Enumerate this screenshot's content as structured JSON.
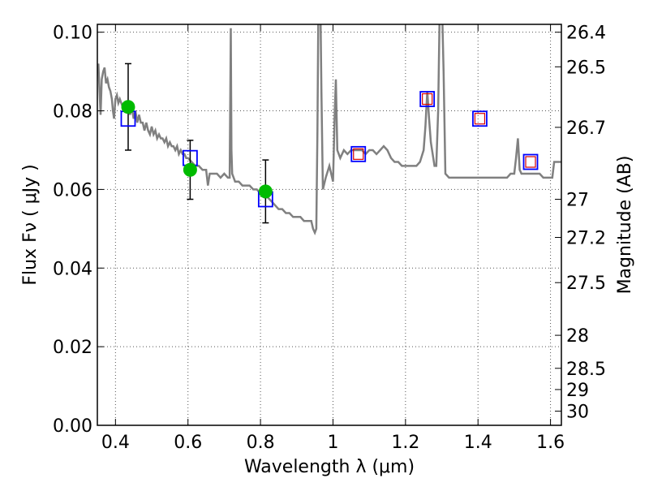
{
  "chart_data": {
    "type": "line",
    "xlabel": "Wavelength  λ (μm)",
    "ylabel": "Flux  Fν  ( μJy )",
    "y2label": "Magnitude (AB)",
    "xlim": [
      0.35,
      1.63
    ],
    "ylim": [
      0.0,
      0.102
    ],
    "grid": true,
    "x_ticks": [
      {
        "value": 0.4,
        "label": "0.4"
      },
      {
        "value": 0.6,
        "label": "0.6"
      },
      {
        "value": 0.8,
        "label": "0.8"
      },
      {
        "value": 1.0,
        "label": "1"
      },
      {
        "value": 1.2,
        "label": "1.2"
      },
      {
        "value": 1.4,
        "label": "1.4"
      },
      {
        "value": 1.6,
        "label": "1.6"
      }
    ],
    "y_ticks": [
      {
        "value": 0.0,
        "label": "0.00"
      },
      {
        "value": 0.02,
        "label": "0.02"
      },
      {
        "value": 0.04,
        "label": "0.04"
      },
      {
        "value": 0.06,
        "label": "0.06"
      },
      {
        "value": 0.08,
        "label": "0.08"
      },
      {
        "value": 0.1,
        "label": "0.10"
      }
    ],
    "y2_ticks": [
      {
        "flux": 0.1,
        "label": "26.4"
      },
      {
        "flux": 0.0912,
        "label": "26.5"
      },
      {
        "flux": 0.0758,
        "label": "26.7"
      },
      {
        "flux": 0.0575,
        "label": "27"
      },
      {
        "flux": 0.0478,
        "label": "27.2"
      },
      {
        "flux": 0.0363,
        "label": "27.5"
      },
      {
        "flux": 0.0229,
        "label": "28"
      },
      {
        "flux": 0.0145,
        "label": "28.5"
      },
      {
        "flux": 0.0091,
        "label": "29"
      },
      {
        "flux": 0.0036,
        "label": "30"
      }
    ],
    "colors": {
      "spectrum": "#808080",
      "observed": "#00bb00",
      "model_box": "#0000ff",
      "model_inner": "#d60000",
      "errorbar": "#000000",
      "grid": "#555555"
    },
    "series": [
      {
        "kind": "spectrum",
        "points": [
          [
            0.35,
            0.09
          ],
          [
            0.353,
            0.092
          ],
          [
            0.356,
            0.085
          ],
          [
            0.359,
            0.079
          ],
          [
            0.362,
            0.088
          ],
          [
            0.366,
            0.09
          ],
          [
            0.37,
            0.091
          ],
          [
            0.374,
            0.087
          ],
          [
            0.378,
            0.088
          ],
          [
            0.382,
            0.086
          ],
          [
            0.386,
            0.085
          ],
          [
            0.39,
            0.083
          ],
          [
            0.393,
            0.08
          ],
          [
            0.396,
            0.078
          ],
          [
            0.4,
            0.083
          ],
          [
            0.404,
            0.084
          ],
          [
            0.408,
            0.082
          ],
          [
            0.412,
            0.083
          ],
          [
            0.416,
            0.082
          ],
          [
            0.42,
            0.081
          ],
          [
            0.425,
            0.08
          ],
          [
            0.43,
            0.081
          ],
          [
            0.435,
            0.081
          ],
          [
            0.44,
            0.079
          ],
          [
            0.445,
            0.081
          ],
          [
            0.45,
            0.078
          ],
          [
            0.455,
            0.08
          ],
          [
            0.46,
            0.077
          ],
          [
            0.465,
            0.079
          ],
          [
            0.47,
            0.077
          ],
          [
            0.475,
            0.077
          ],
          [
            0.48,
            0.075
          ],
          [
            0.485,
            0.077
          ],
          [
            0.49,
            0.075
          ],
          [
            0.495,
            0.074
          ],
          [
            0.5,
            0.076
          ],
          [
            0.505,
            0.074
          ],
          [
            0.51,
            0.075
          ],
          [
            0.515,
            0.073
          ],
          [
            0.52,
            0.074
          ],
          [
            0.525,
            0.073
          ],
          [
            0.53,
            0.073
          ],
          [
            0.535,
            0.072
          ],
          [
            0.54,
            0.073
          ],
          [
            0.545,
            0.071
          ],
          [
            0.55,
            0.072
          ],
          [
            0.555,
            0.071
          ],
          [
            0.56,
            0.071
          ],
          [
            0.565,
            0.07
          ],
          [
            0.57,
            0.071
          ],
          [
            0.575,
            0.069
          ],
          [
            0.58,
            0.07
          ],
          [
            0.585,
            0.069
          ],
          [
            0.59,
            0.069
          ],
          [
            0.595,
            0.068
          ],
          [
            0.6,
            0.068
          ],
          [
            0.61,
            0.067
          ],
          [
            0.62,
            0.066
          ],
          [
            0.63,
            0.066
          ],
          [
            0.64,
            0.065
          ],
          [
            0.65,
            0.065
          ],
          [
            0.655,
            0.061
          ],
          [
            0.66,
            0.064
          ],
          [
            0.67,
            0.064
          ],
          [
            0.68,
            0.064
          ],
          [
            0.69,
            0.063
          ],
          [
            0.7,
            0.064
          ],
          [
            0.71,
            0.063
          ],
          [
            0.715,
            0.063
          ],
          [
            0.718,
            0.101
          ],
          [
            0.72,
            0.07
          ],
          [
            0.722,
            0.064
          ],
          [
            0.73,
            0.062
          ],
          [
            0.74,
            0.062
          ],
          [
            0.75,
            0.061
          ],
          [
            0.76,
            0.061
          ],
          [
            0.77,
            0.061
          ],
          [
            0.78,
            0.06
          ],
          [
            0.79,
            0.06
          ],
          [
            0.8,
            0.059
          ],
          [
            0.81,
            0.058
          ],
          [
            0.82,
            0.058
          ],
          [
            0.83,
            0.057
          ],
          [
            0.84,
            0.056
          ],
          [
            0.85,
            0.055
          ],
          [
            0.86,
            0.055
          ],
          [
            0.87,
            0.054
          ],
          [
            0.88,
            0.054
          ],
          [
            0.89,
            0.053
          ],
          [
            0.9,
            0.053
          ],
          [
            0.91,
            0.053
          ],
          [
            0.92,
            0.052
          ],
          [
            0.93,
            0.052
          ],
          [
            0.94,
            0.052
          ],
          [
            0.945,
            0.05
          ],
          [
            0.95,
            0.049
          ],
          [
            0.954,
            0.05
          ],
          [
            0.957,
            0.075
          ],
          [
            0.96,
            0.11
          ],
          [
            0.965,
            0.11
          ],
          [
            0.968,
            0.085
          ],
          [
            0.972,
            0.06
          ],
          [
            0.98,
            0.063
          ],
          [
            0.99,
            0.066
          ],
          [
            1.0,
            0.062
          ],
          [
            1.005,
            0.08
          ],
          [
            1.008,
            0.088
          ],
          [
            1.012,
            0.07
          ],
          [
            1.02,
            0.068
          ],
          [
            1.03,
            0.07
          ],
          [
            1.04,
            0.069
          ],
          [
            1.05,
            0.07
          ],
          [
            1.06,
            0.07
          ],
          [
            1.07,
            0.07
          ],
          [
            1.08,
            0.07
          ],
          [
            1.09,
            0.069
          ],
          [
            1.1,
            0.07
          ],
          [
            1.11,
            0.07
          ],
          [
            1.12,
            0.069
          ],
          [
            1.13,
            0.07
          ],
          [
            1.14,
            0.071
          ],
          [
            1.15,
            0.07
          ],
          [
            1.16,
            0.068
          ],
          [
            1.17,
            0.067
          ],
          [
            1.18,
            0.067
          ],
          [
            1.19,
            0.066
          ],
          [
            1.2,
            0.066
          ],
          [
            1.21,
            0.066
          ],
          [
            1.22,
            0.066
          ],
          [
            1.23,
            0.066
          ],
          [
            1.24,
            0.067
          ],
          [
            1.25,
            0.07
          ],
          [
            1.255,
            0.076
          ],
          [
            1.26,
            0.085
          ],
          [
            1.265,
            0.078
          ],
          [
            1.27,
            0.072
          ],
          [
            1.28,
            0.066
          ],
          [
            1.285,
            0.066
          ],
          [
            1.29,
            0.08
          ],
          [
            1.295,
            0.11
          ],
          [
            1.3,
            0.11
          ],
          [
            1.305,
            0.09
          ],
          [
            1.31,
            0.064
          ],
          [
            1.32,
            0.063
          ],
          [
            1.33,
            0.063
          ],
          [
            1.34,
            0.063
          ],
          [
            1.35,
            0.063
          ],
          [
            1.36,
            0.063
          ],
          [
            1.37,
            0.063
          ],
          [
            1.38,
            0.063
          ],
          [
            1.39,
            0.063
          ],
          [
            1.4,
            0.063
          ],
          [
            1.41,
            0.063
          ],
          [
            1.42,
            0.063
          ],
          [
            1.43,
            0.063
          ],
          [
            1.44,
            0.063
          ],
          [
            1.45,
            0.063
          ],
          [
            1.46,
            0.063
          ],
          [
            1.47,
            0.063
          ],
          [
            1.48,
            0.063
          ],
          [
            1.49,
            0.064
          ],
          [
            1.5,
            0.064
          ],
          [
            1.505,
            0.068
          ],
          [
            1.51,
            0.073
          ],
          [
            1.515,
            0.065
          ],
          [
            1.52,
            0.064
          ],
          [
            1.53,
            0.064
          ],
          [
            1.54,
            0.064
          ],
          [
            1.55,
            0.064
          ],
          [
            1.56,
            0.064
          ],
          [
            1.57,
            0.064
          ],
          [
            1.58,
            0.063
          ],
          [
            1.59,
            0.063
          ],
          [
            1.6,
            0.063
          ],
          [
            1.605,
            0.063
          ],
          [
            1.61,
            0.067
          ],
          [
            1.62,
            0.067
          ],
          [
            1.63,
            0.067
          ]
        ]
      },
      {
        "kind": "observed",
        "points": [
          {
            "x": 0.435,
            "y": 0.081,
            "yerr": 0.011
          },
          {
            "x": 0.606,
            "y": 0.065,
            "yerr": 0.0075
          },
          {
            "x": 0.814,
            "y": 0.0595,
            "yerr": 0.008
          }
        ]
      },
      {
        "kind": "model",
        "points": [
          {
            "x": 0.435,
            "y": 0.078,
            "inner": false
          },
          {
            "x": 0.606,
            "y": 0.068,
            "inner": false
          },
          {
            "x": 0.814,
            "y": 0.0575,
            "inner": false
          },
          {
            "x": 1.07,
            "y": 0.069,
            "inner": true
          },
          {
            "x": 1.26,
            "y": 0.083,
            "inner": true
          },
          {
            "x": 1.405,
            "y": 0.078,
            "inner": true
          },
          {
            "x": 1.545,
            "y": 0.067,
            "inner": true
          }
        ]
      }
    ]
  }
}
